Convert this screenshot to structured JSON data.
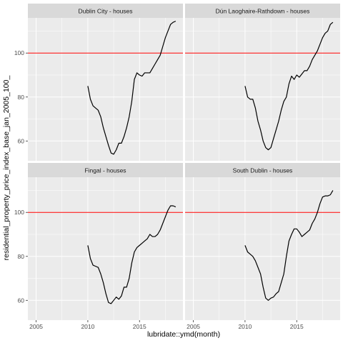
{
  "chart_data": {
    "type": "line",
    "xlabel": "lubridate::ymd(month)",
    "ylabel": "residential_property_price_index_base_jan_2005_100_",
    "xlim": [
      2004.2,
      2019.2
    ],
    "ylim": [
      51,
      116
    ],
    "x_ticks": [
      2005,
      2010,
      2015
    ],
    "y_ticks": [
      60,
      80,
      100
    ],
    "reference_line": {
      "y": 100,
      "color": "#ff0000"
    },
    "colors": {
      "panel_bg": "#ebebeb",
      "strip_bg": "#d9d9d9",
      "grid": "#ffffff",
      "line": "#000000"
    },
    "panels": [
      {
        "title": "Dublin City - houses",
        "points": [
          [
            2010.0,
            85
          ],
          [
            2010.25,
            79
          ],
          [
            2010.5,
            76
          ],
          [
            2010.75,
            75
          ],
          [
            2011.0,
            74
          ],
          [
            2011.25,
            71
          ],
          [
            2011.5,
            66
          ],
          [
            2011.75,
            62
          ],
          [
            2012.0,
            58
          ],
          [
            2012.25,
            54.5
          ],
          [
            2012.5,
            54
          ],
          [
            2012.75,
            56
          ],
          [
            2013.0,
            59
          ],
          [
            2013.25,
            59
          ],
          [
            2013.5,
            62
          ],
          [
            2013.75,
            66
          ],
          [
            2014.0,
            71
          ],
          [
            2014.25,
            78
          ],
          [
            2014.5,
            88
          ],
          [
            2014.75,
            91
          ],
          [
            2015.0,
            90
          ],
          [
            2015.25,
            89.5
          ],
          [
            2015.5,
            91
          ],
          [
            2015.75,
            91
          ],
          [
            2016.0,
            91
          ],
          [
            2016.25,
            93
          ],
          [
            2016.5,
            95
          ],
          [
            2016.75,
            97
          ],
          [
            2017.0,
            99
          ],
          [
            2017.25,
            103
          ],
          [
            2017.5,
            107
          ],
          [
            2017.75,
            110
          ],
          [
            2018.0,
            113
          ],
          [
            2018.25,
            114
          ],
          [
            2018.5,
            114.5
          ]
        ]
      },
      {
        "title": "Dún Laoghaire-Rathdown - houses",
        "points": [
          [
            2010.0,
            85
          ],
          [
            2010.25,
            80
          ],
          [
            2010.5,
            79
          ],
          [
            2010.75,
            79
          ],
          [
            2011.0,
            75
          ],
          [
            2011.25,
            69
          ],
          [
            2011.5,
            65
          ],
          [
            2011.75,
            60
          ],
          [
            2012.0,
            57
          ],
          [
            2012.25,
            56
          ],
          [
            2012.5,
            57
          ],
          [
            2012.75,
            61
          ],
          [
            2013.0,
            65
          ],
          [
            2013.25,
            69
          ],
          [
            2013.5,
            74
          ],
          [
            2013.75,
            78
          ],
          [
            2014.0,
            80
          ],
          [
            2014.25,
            86
          ],
          [
            2014.5,
            89.5
          ],
          [
            2014.75,
            88
          ],
          [
            2015.0,
            90
          ],
          [
            2015.25,
            89
          ],
          [
            2015.5,
            90.5
          ],
          [
            2015.75,
            92
          ],
          [
            2016.0,
            92
          ],
          [
            2016.25,
            94
          ],
          [
            2016.5,
            97
          ],
          [
            2016.75,
            99
          ],
          [
            2017.0,
            101
          ],
          [
            2017.25,
            104
          ],
          [
            2017.5,
            107
          ],
          [
            2017.75,
            109
          ],
          [
            2018.0,
            110
          ],
          [
            2018.25,
            113
          ],
          [
            2018.5,
            114
          ]
        ]
      },
      {
        "title": "Fingal - houses",
        "points": [
          [
            2010.0,
            85
          ],
          [
            2010.25,
            79
          ],
          [
            2010.5,
            76
          ],
          [
            2010.75,
            75.5
          ],
          [
            2011.0,
            75
          ],
          [
            2011.25,
            72
          ],
          [
            2011.5,
            68
          ],
          [
            2011.75,
            63
          ],
          [
            2012.0,
            59
          ],
          [
            2012.25,
            58.5
          ],
          [
            2012.5,
            60
          ],
          [
            2012.75,
            61.5
          ],
          [
            2013.0,
            60.5
          ],
          [
            2013.25,
            62
          ],
          [
            2013.5,
            66
          ],
          [
            2013.75,
            66
          ],
          [
            2014.0,
            70
          ],
          [
            2014.25,
            77
          ],
          [
            2014.5,
            82
          ],
          [
            2014.75,
            84
          ],
          [
            2015.0,
            85
          ],
          [
            2015.25,
            86
          ],
          [
            2015.5,
            87
          ],
          [
            2015.75,
            88
          ],
          [
            2016.0,
            90
          ],
          [
            2016.25,
            89
          ],
          [
            2016.5,
            89
          ],
          [
            2016.75,
            90
          ],
          [
            2017.0,
            92
          ],
          [
            2017.25,
            95
          ],
          [
            2017.5,
            98
          ],
          [
            2017.75,
            101
          ],
          [
            2018.0,
            103
          ],
          [
            2018.25,
            103
          ],
          [
            2018.5,
            102.5
          ]
        ]
      },
      {
        "title": "South Dublin - houses",
        "points": [
          [
            2010.0,
            85
          ],
          [
            2010.25,
            82
          ],
          [
            2010.5,
            81
          ],
          [
            2010.75,
            80
          ],
          [
            2011.0,
            78
          ],
          [
            2011.25,
            75
          ],
          [
            2011.5,
            72
          ],
          [
            2011.75,
            66
          ],
          [
            2012.0,
            61
          ],
          [
            2012.25,
            60
          ],
          [
            2012.5,
            61
          ],
          [
            2012.75,
            61.5
          ],
          [
            2013.0,
            63
          ],
          [
            2013.25,
            64
          ],
          [
            2013.5,
            68
          ],
          [
            2013.75,
            72
          ],
          [
            2014.0,
            80
          ],
          [
            2014.25,
            87
          ],
          [
            2014.5,
            90
          ],
          [
            2014.75,
            92.5
          ],
          [
            2015.0,
            92.5
          ],
          [
            2015.25,
            91
          ],
          [
            2015.5,
            89
          ],
          [
            2015.75,
            90
          ],
          [
            2016.0,
            91
          ],
          [
            2016.25,
            92
          ],
          [
            2016.5,
            95
          ],
          [
            2016.75,
            97
          ],
          [
            2017.0,
            100
          ],
          [
            2017.25,
            104
          ],
          [
            2017.5,
            107
          ],
          [
            2017.75,
            107.5
          ],
          [
            2018.0,
            107.5
          ],
          [
            2018.25,
            108
          ],
          [
            2018.5,
            110
          ]
        ]
      }
    ]
  }
}
